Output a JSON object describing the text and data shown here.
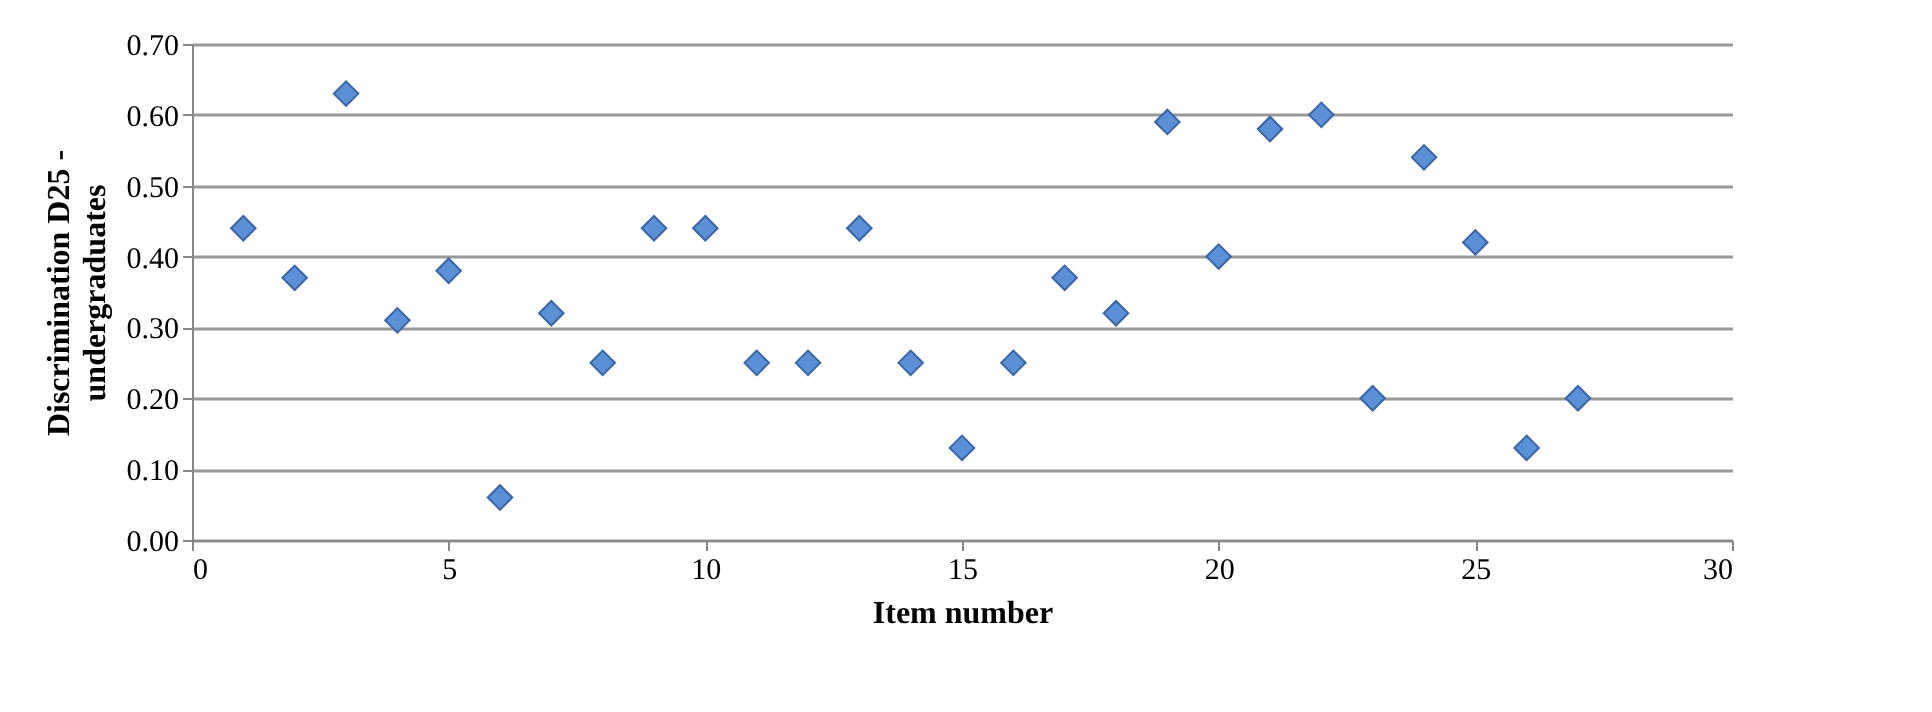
{
  "chart_data": {
    "type": "scatter",
    "xlabel": "Item number",
    "ylabel": "Discrimination D25 - undergraduates",
    "x": [
      1,
      2,
      3,
      4,
      5,
      6,
      7,
      8,
      9,
      10,
      11,
      12,
      13,
      14,
      15,
      16,
      17,
      18,
      19,
      20,
      21,
      22,
      23,
      24,
      25,
      26,
      27
    ],
    "series": [
      {
        "color": "#5b8fd6",
        "values": [
          0.44,
          0.37,
          0.63,
          0.31,
          0.38,
          0.06,
          0.32,
          0.25,
          0.44,
          0.44,
          0.25,
          0.25,
          0.44,
          0.25,
          0.13,
          0.25,
          0.37,
          0.32,
          0.59,
          0.4,
          0.58,
          0.6,
          0.2,
          0.54,
          0.42,
          0.13,
          0.2
        ]
      }
    ],
    "xlim": [
      0,
      30
    ],
    "xticks": [
      0,
      5,
      10,
      15,
      20,
      25,
      30
    ],
    "ylim": [
      0,
      0.7
    ],
    "yticks": [
      {
        "value": 0,
        "label": "0.00"
      },
      {
        "value": 0.1,
        "label": "0.10"
      },
      {
        "value": 0.2,
        "label": "0.20"
      },
      {
        "value": 0.3,
        "label": "0.30"
      },
      {
        "value": 0.4,
        "label": "0.40"
      },
      {
        "value": 0.5,
        "label": "0.50"
      },
      {
        "value": 0.6,
        "label": "0.60"
      },
      {
        "value": 0.7,
        "label": "0.70"
      }
    ],
    "grid": "y",
    "marker": "diamond",
    "legend": false
  }
}
